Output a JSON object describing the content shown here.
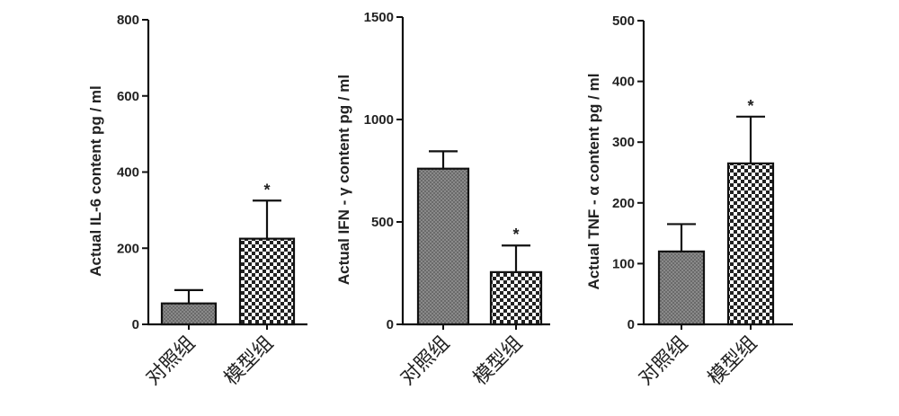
{
  "chart_data": [
    {
      "type": "bar",
      "ylabel": "Actual IL-6 content pg / ml",
      "ylim": [
        0,
        800
      ],
      "yticks": [
        0,
        200,
        400,
        600,
        800
      ],
      "categories": [
        "对照组",
        "模型组"
      ],
      "values": [
        55,
        225
      ],
      "errors": [
        35,
        100
      ],
      "annotations": [
        "",
        "*"
      ],
      "patterns": [
        "fine-gray",
        "checker"
      ]
    },
    {
      "type": "bar",
      "ylabel": "Actual IFN - γ content pg / ml",
      "ylim": [
        0,
        1500
      ],
      "yticks": [
        0,
        500,
        1000,
        1500
      ],
      "categories": [
        "对照组",
        "模型组"
      ],
      "values": [
        760,
        255
      ],
      "errors": [
        85,
        130
      ],
      "annotations": [
        "",
        "*"
      ],
      "patterns": [
        "fine-gray",
        "checker"
      ]
    },
    {
      "type": "bar",
      "ylabel": "Actual TNF - α content pg / ml",
      "ylim": [
        0,
        500
      ],
      "yticks": [
        0,
        100,
        200,
        300,
        400,
        500
      ],
      "categories": [
        "对照组",
        "模型组"
      ],
      "values": [
        120,
        265
      ],
      "errors": [
        45,
        77
      ],
      "annotations": [
        "",
        "*"
      ],
      "patterns": [
        "fine-gray",
        "checker"
      ]
    }
  ]
}
